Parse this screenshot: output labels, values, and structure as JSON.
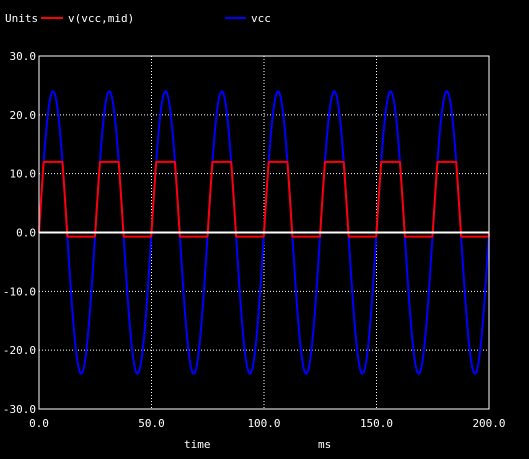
{
  "legend": {
    "units_label": "Units",
    "items": [
      {
        "label": "v(vcc,mid)",
        "color": "#ff0000"
      },
      {
        "label": "vcc",
        "color": "#0000ff"
      }
    ]
  },
  "axis": {
    "x_ticks": [
      "0.0",
      "50.0",
      "100.0",
      "150.0",
      "200.0"
    ],
    "y_ticks": [
      "30.0",
      "20.0",
      "10.0",
      "0.0",
      "-10.0",
      "-20.0",
      "-30.0"
    ],
    "xlabel": "time",
    "xunit": "ms"
  },
  "colors": {
    "background": "#000000",
    "frame": "#ffffff",
    "grid": "#ffffff",
    "text": "#ffffff",
    "zero_line": "#ffffff"
  },
  "chart_data": {
    "type": "line",
    "x_range": [
      0,
      200
    ],
    "ylim": [
      -30,
      30
    ],
    "grid": true,
    "legend_position": "top-left",
    "xlabel": "time",
    "xunit": "ms",
    "series": [
      {
        "name": "vcc",
        "color": "#0000ff",
        "shape": "sine",
        "amplitude": 24,
        "period_ms": 25,
        "phase_deg": 0
      },
      {
        "name": "v(vcc,mid)",
        "color": "#ff0000",
        "shape": "clipped-sine",
        "amplitude": 24,
        "period_ms": 25,
        "phase_deg": 0,
        "upper_clip": 12,
        "lower_clip": -0.7
      }
    ]
  }
}
